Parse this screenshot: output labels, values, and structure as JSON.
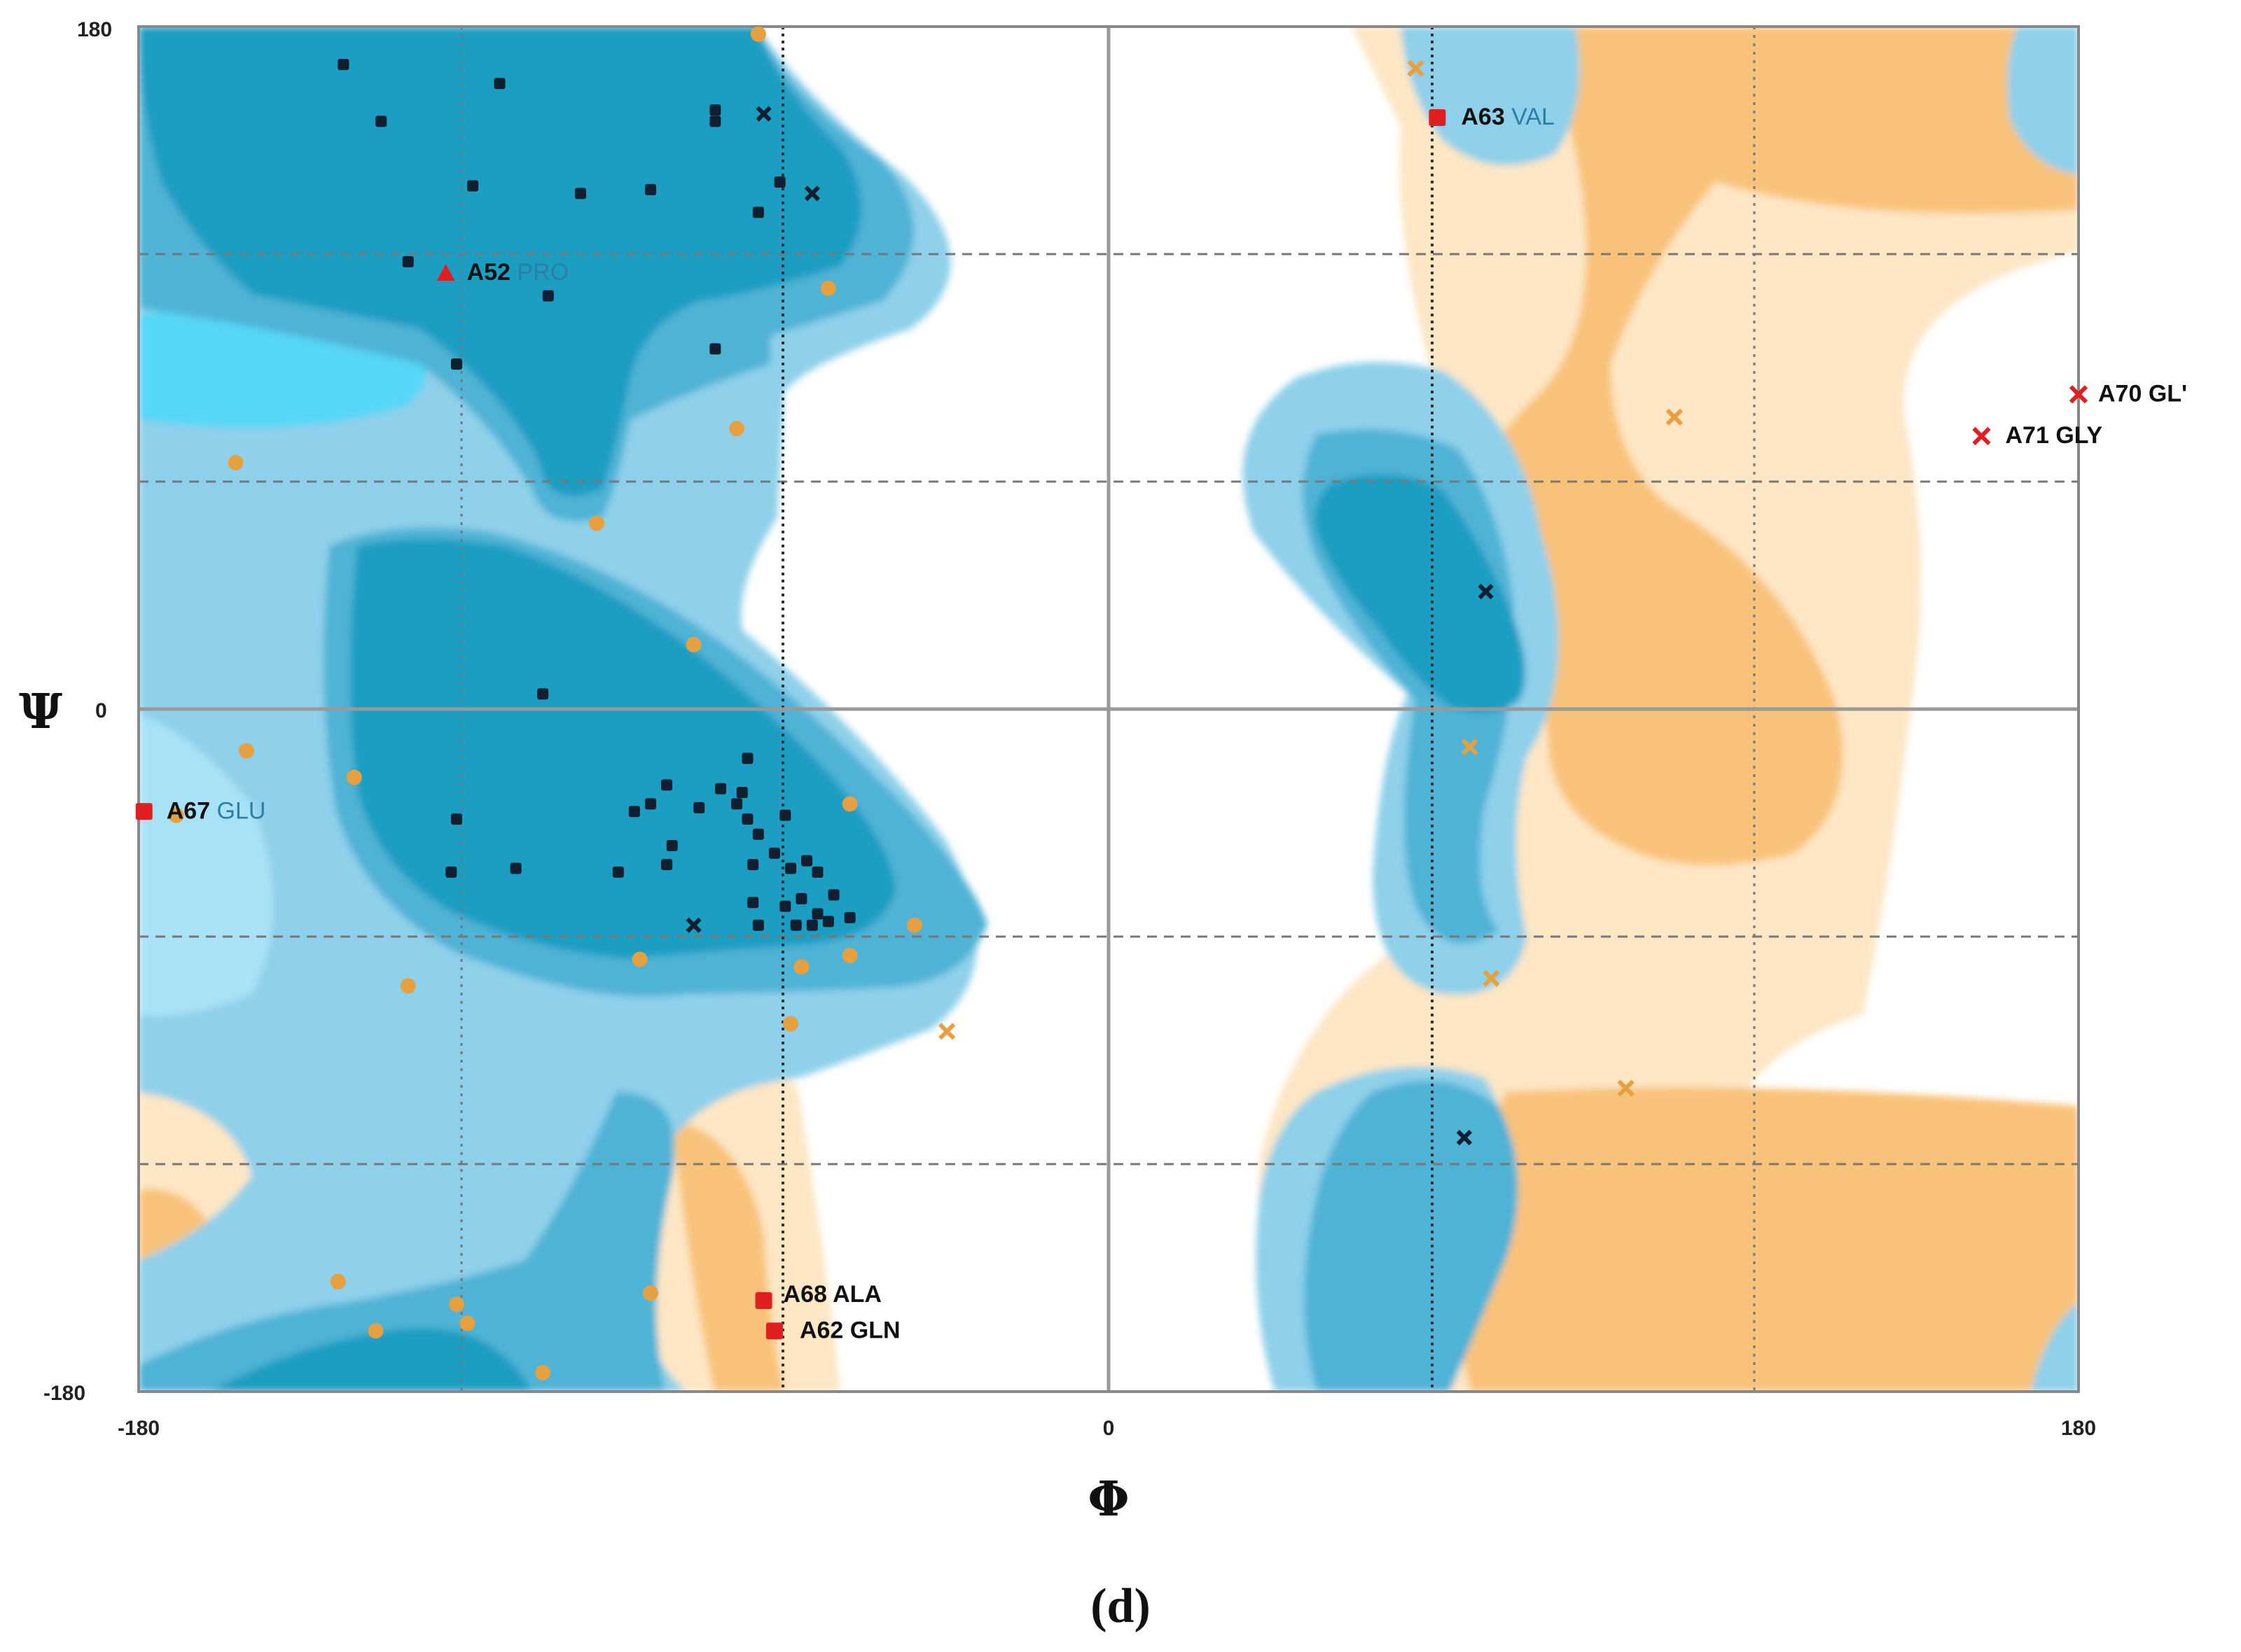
{
  "panel_label": "(d)",
  "colors": {
    "favoured_core": "#1f9dc2",
    "favoured_mid": "#4fb3d6",
    "favoured_allowed": "#8fd0ea",
    "favoured_bright": "#57d7f7",
    "gly_core": "#f9c27a",
    "gly_allowed": "#fde6c4",
    "outlier": "#e02020",
    "normal_point": "#102030",
    "gly_point": "#e7a040"
  },
  "chart_data": {
    "type": "scatter",
    "title": "",
    "xlabel": "Φ",
    "ylabel": "Ψ",
    "xlim": [
      -180,
      180
    ],
    "ylim": [
      -180,
      180
    ],
    "xticks": [
      -180,
      0,
      180
    ],
    "yticks": [
      -180,
      0,
      180
    ],
    "xtick_labels": [
      "-180",
      "0",
      "180"
    ],
    "ytick_labels": [
      "-180",
      "0",
      "180"
    ],
    "grid": true,
    "series": [
      {
        "kind": "residues",
        "points": [
          [
            -142,
            170
          ],
          [
            -113,
            165
          ],
          [
            -135,
            155
          ],
          [
            -73,
            158
          ],
          [
            -73,
            155
          ],
          [
            -118,
            138
          ],
          [
            -98,
            136
          ],
          [
            -85,
            137
          ],
          [
            -61,
            139
          ],
          [
            -65,
            131
          ],
          [
            -130,
            118
          ],
          [
            -104,
            109
          ],
          [
            -73,
            95
          ],
          [
            -121,
            91
          ],
          [
            -105,
            4
          ],
          [
            -67,
            -13
          ],
          [
            -82,
            -20
          ],
          [
            -72,
            -21
          ],
          [
            -76,
            -26
          ],
          [
            -85,
            -25
          ],
          [
            -88,
            -27
          ],
          [
            -68,
            -22
          ],
          [
            -69,
            -25
          ],
          [
            -67,
            -29
          ],
          [
            -60,
            -28
          ],
          [
            -121,
            -29
          ],
          [
            -122,
            -43
          ],
          [
            -110,
            -42
          ],
          [
            -91,
            -43
          ],
          [
            -81,
            -36
          ],
          [
            -82,
            -41
          ],
          [
            -65,
            -33
          ],
          [
            -62,
            -38
          ],
          [
            -56,
            -40
          ],
          [
            -66,
            -41
          ],
          [
            -59,
            -42
          ],
          [
            -54,
            -43
          ],
          [
            -66,
            -51
          ],
          [
            -57,
            -50
          ],
          [
            -51,
            -49
          ],
          [
            -60,
            -52
          ],
          [
            -54,
            -54
          ],
          [
            -48,
            -55
          ],
          [
            -52,
            -56
          ],
          [
            -65,
            -57
          ],
          [
            -58,
            -57
          ],
          [
            -55,
            -57
          ]
        ]
      },
      {
        "kind": "residues-cross",
        "points": [
          [
            -64,
            157
          ],
          [
            -55,
            136
          ],
          [
            -77,
            -57
          ],
          [
            70,
            31
          ],
          [
            66,
            -113
          ]
        ]
      },
      {
        "kind": "glycine",
        "points": [
          [
            -65,
            178
          ],
          [
            -52,
            111
          ],
          [
            -69,
            74
          ],
          [
            -162,
            65
          ],
          [
            -95,
            49
          ],
          [
            -77,
            17
          ],
          [
            -160,
            -11
          ],
          [
            -140,
            -18
          ],
          [
            -48,
            -25
          ],
          [
            -173,
            -28
          ],
          [
            -87,
            -66
          ],
          [
            -130,
            -73
          ],
          [
            -57,
            -68
          ],
          [
            -48,
            -65
          ],
          [
            -36,
            -57
          ],
          [
            -59,
            -83
          ],
          [
            -143,
            -151
          ],
          [
            -121,
            -157
          ],
          [
            -136,
            -164
          ],
          [
            -85,
            -154
          ],
          [
            -119,
            -162
          ],
          [
            -105,
            -175
          ]
        ]
      },
      {
        "kind": "glycine-cross",
        "points": [
          [
            57,
            169
          ],
          [
            105,
            77
          ],
          [
            67,
            -10
          ],
          [
            71,
            -71
          ],
          [
            96,
            -100
          ],
          [
            -30,
            -85
          ]
        ]
      },
      {
        "kind": "outliers",
        "points": [
          {
            "x": -123,
            "y": 115,
            "label": "A52 PRO"
          },
          {
            "x": 61,
            "y": 156,
            "label": "A63 VAL"
          },
          {
            "x": 180,
            "y": 83,
            "label": "A70 GL"
          },
          {
            "x": 162,
            "y": 72,
            "label": "A71 GLY"
          },
          {
            "x": -179,
            "y": -27,
            "label": "A67 GLU"
          },
          {
            "x": -64,
            "y": -156,
            "label": "A68 ALA"
          },
          {
            "x": -62,
            "y": -164,
            "label": "A62 GLN"
          }
        ]
      }
    ],
    "labels": [
      {
        "code": "A52",
        "res": "PRO"
      },
      {
        "code": "A63",
        "res": "VAL"
      },
      {
        "code": "A70",
        "res": "GL'"
      },
      {
        "code": "A71",
        "res": "GLY"
      },
      {
        "code": "A67",
        "res": "GLU"
      },
      {
        "code": "A68",
        "res": "ALA"
      },
      {
        "code": "A62",
        "res": "GLN"
      }
    ]
  }
}
